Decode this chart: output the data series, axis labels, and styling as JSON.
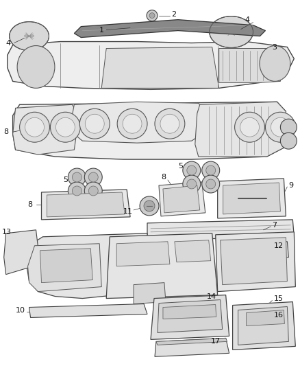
{
  "background_color": "#ffffff",
  "line_color": "#444444",
  "label_color": "#111111",
  "figsize": [
    4.38,
    5.33
  ],
  "dpi": 100,
  "parts": {
    "strip_color": "#888888",
    "panel_fill": "#f0f0f0",
    "panel_edge": "#444444",
    "gauge_fill": "#e8e8e8",
    "vent_fill": "#cccccc",
    "dark_fill": "#b0b0b0"
  }
}
